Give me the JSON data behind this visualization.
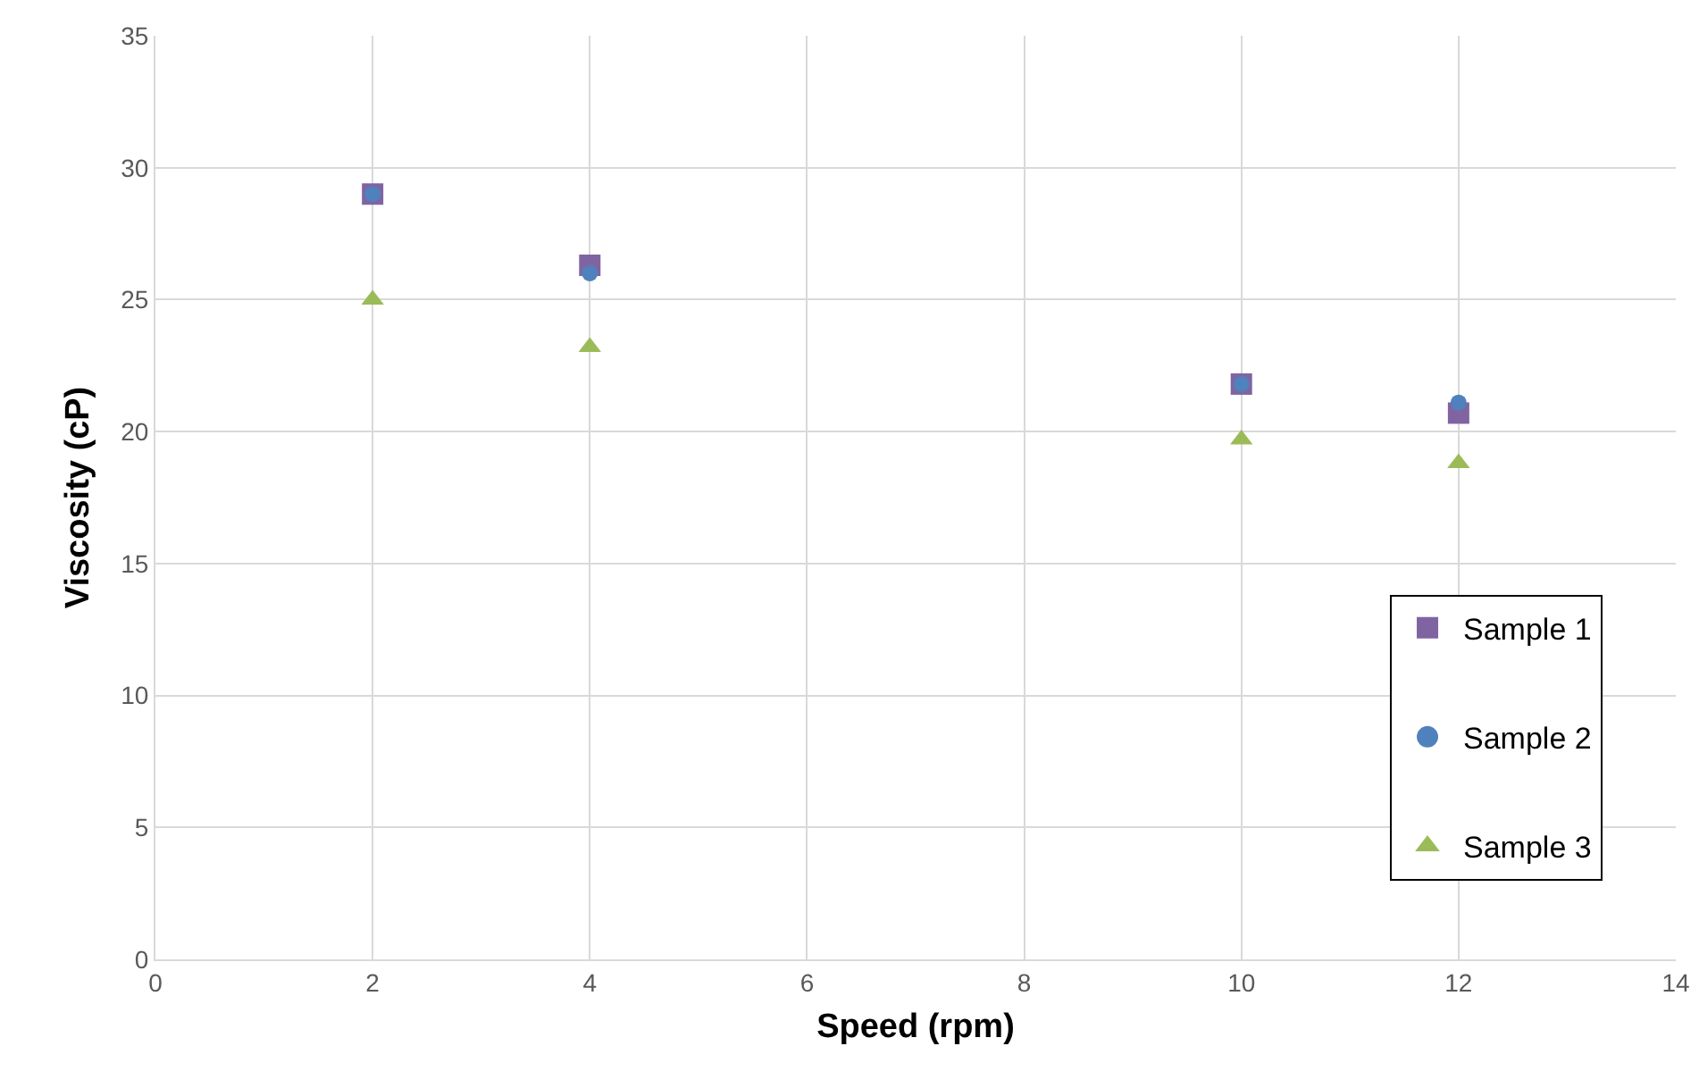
{
  "chart_data": {
    "type": "scatter",
    "xlabel": "Speed (rpm)",
    "ylabel": "Viscosity (cP)",
    "x": [
      2,
      4,
      10,
      12
    ],
    "series": [
      {
        "name": "Sample 1",
        "color": "#8064a2",
        "marker": "square",
        "values": [
          29.0,
          26.3,
          21.8,
          20.7
        ]
      },
      {
        "name": "Sample 2",
        "color": "#4f81bd",
        "marker": "circle",
        "values": [
          29.0,
          26.0,
          21.8,
          21.1
        ]
      },
      {
        "name": "Sample 3",
        "color": "#9bbb59",
        "marker": "triangle",
        "values": [
          25.0,
          23.2,
          19.7,
          18.8
        ]
      }
    ],
    "xlim": [
      0,
      14
    ],
    "xticks": [
      0,
      2,
      4,
      6,
      8,
      10,
      12,
      14
    ],
    "ylim": [
      0,
      35
    ],
    "yticks": [
      0,
      5,
      10,
      15,
      20,
      25,
      30,
      35
    ],
    "grid": true,
    "legend": "right"
  }
}
